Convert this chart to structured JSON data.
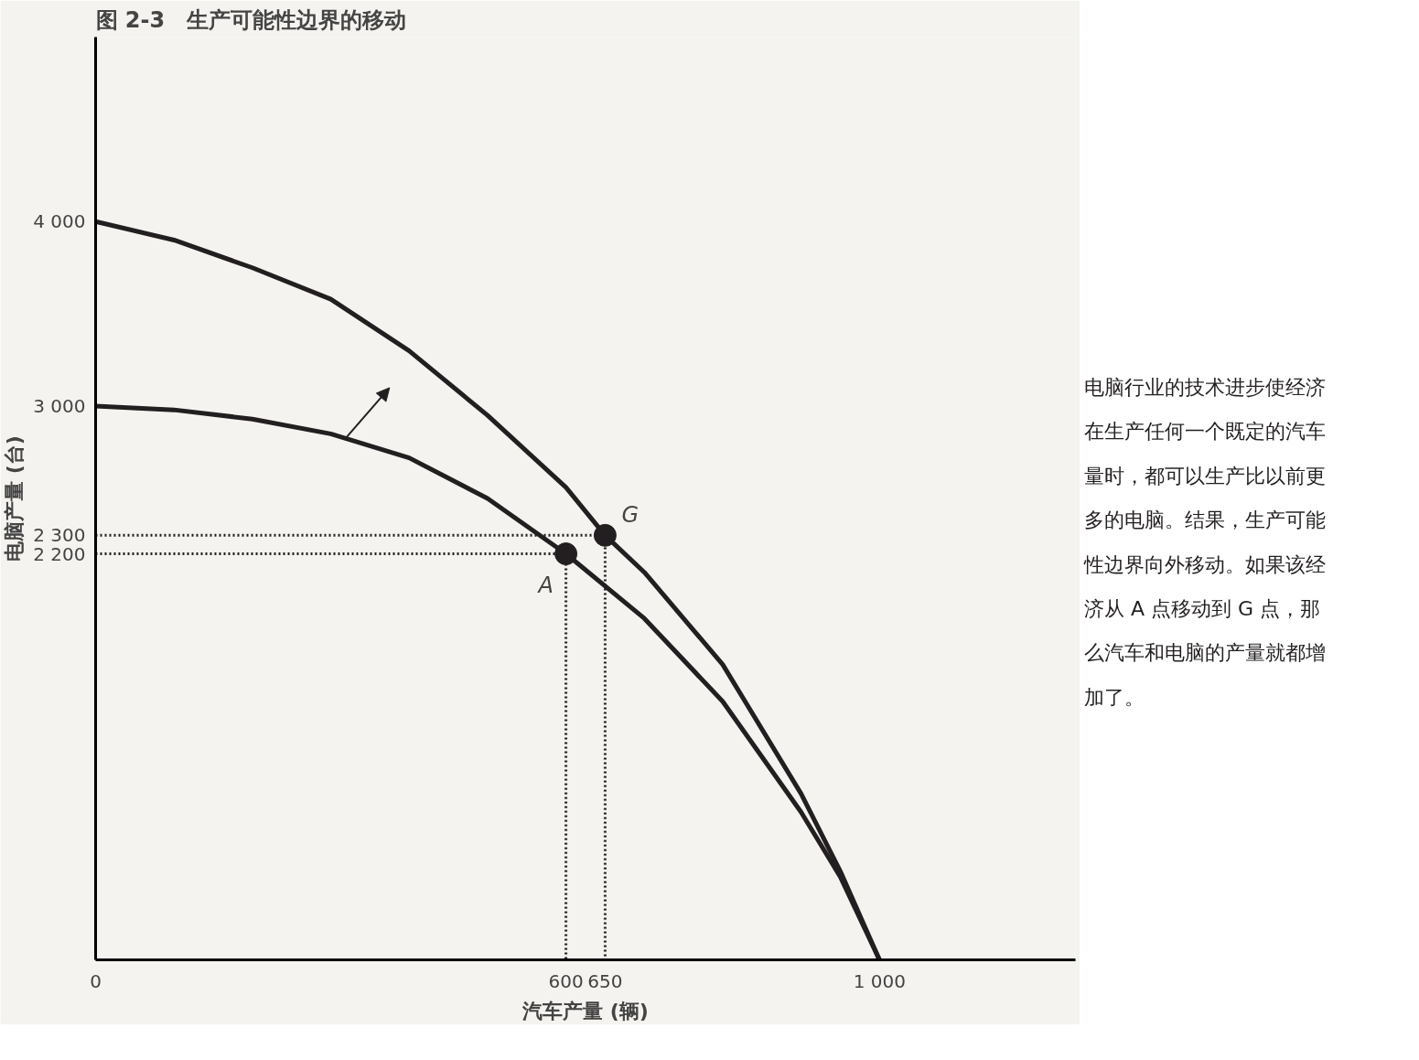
{
  "chart_data": {
    "type": "line",
    "title": "图 2-3　生产可能性边界的移动",
    "xlabel": "汽车产量 (辆)",
    "ylabel": "电脑产量 (台)",
    "xlim": [
      0,
      1250
    ],
    "ylim": [
      0,
      5000
    ],
    "xticks": [
      0,
      600,
      650,
      {
        "value": 1000,
        "label": "1 000"
      }
    ],
    "yticks": [
      {
        "value": 2200,
        "label": "2 200"
      },
      {
        "value": 2300,
        "label": "2 300"
      },
      {
        "value": 3000,
        "label": "3 000"
      },
      {
        "value": 4000,
        "label": "4 000"
      }
    ],
    "grid": false,
    "series": [
      {
        "color": "#231f20",
        "line_style": "solid",
        "x": [
          0,
          100,
          200,
          300,
          400,
          500,
          600,
          700,
          800,
          900,
          950,
          1000
        ],
        "values": [
          3000,
          2980,
          2930,
          2850,
          2720,
          2500,
          2200,
          1850,
          1400,
          800,
          450,
          0
        ]
      },
      {
        "color": "#231f20",
        "line_style": "solid",
        "x": [
          0,
          100,
          200,
          300,
          400,
          500,
          600,
          650,
          700,
          800,
          900,
          950,
          1000
        ],
        "values": [
          4000,
          3900,
          3750,
          3580,
          3300,
          2950,
          2560,
          2300,
          2100,
          1600,
          900,
          480,
          0
        ]
      },
      {
        "color": "#231f20",
        "line_style": "dotted",
        "x": [
          0,
          600,
          600
        ],
        "values": [
          2200,
          2200,
          0
        ]
      },
      {
        "color": "#231f20",
        "line_style": "dotted",
        "x": [
          0,
          650,
          650
        ],
        "values": [
          2300,
          2300,
          0
        ]
      },
      {
        "type": "scatter",
        "color": "#231f20",
        "marker": "circle",
        "x": [
          600,
          650
        ],
        "values": [
          2200,
          2300
        ]
      }
    ],
    "annotations": [
      {
        "text": "A",
        "x": 600,
        "y": 2200
      },
      {
        "text": "G",
        "x": 650,
        "y": 2300
      },
      "电脑行业的技术进步使经济在生产任何一个既定的汽车量时，都可以生产比以前更多的电脑。结果，生产可能性边界向外移动。如果该经济从 A 点移动到 G 点，那么汽车和电脑的产量就都增加了。"
    ]
  }
}
